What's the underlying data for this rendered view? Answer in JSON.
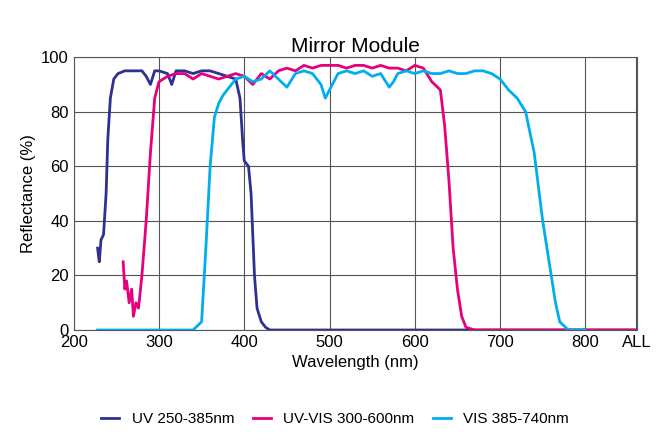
{
  "chart_data": {
    "type": "line",
    "title": "Mirror Module",
    "x_label": "Wavelength (nm)",
    "y_label": "Reflectance (%)",
    "xlim": [
      200,
      860
    ],
    "xticks": [
      200,
      300,
      400,
      500,
      600,
      700,
      800,
      {
        "value": 860,
        "label": "ALL"
      }
    ],
    "ylim": [
      0,
      100
    ],
    "yticks": [
      0,
      20,
      40,
      60,
      80,
      100
    ],
    "grid": true,
    "legend": "lower center",
    "series": [
      {
        "name": "UV 250-385nm",
        "color": "#2e3192",
        "x": [
          228,
          230,
          232,
          235,
          238,
          240,
          243,
          247,
          252,
          260,
          270,
          280,
          285,
          290,
          295,
          300,
          310,
          315,
          320,
          330,
          340,
          350,
          360,
          370,
          380,
          390,
          395,
          398,
          400,
          405,
          408,
          410,
          412,
          415,
          420,
          425,
          430,
          500,
          600,
          700,
          800,
          860
        ],
        "values": [
          30,
          25,
          33,
          35,
          50,
          70,
          85,
          92,
          94,
          95,
          95,
          95,
          93,
          90,
          95,
          95,
          94,
          90,
          95,
          95,
          94,
          95,
          95,
          94,
          93,
          92,
          85,
          70,
          62,
          60,
          50,
          35,
          20,
          8,
          3,
          1,
          0,
          0,
          0,
          0,
          0,
          0
        ]
      },
      {
        "name": "UV-VIS 300-600nm",
        "color": "#e6007e",
        "x": [
          258,
          260,
          262,
          265,
          268,
          270,
          273,
          276,
          280,
          285,
          290,
          295,
          300,
          310,
          320,
          330,
          340,
          350,
          360,
          370,
          380,
          390,
          400,
          410,
          420,
          430,
          440,
          450,
          460,
          470,
          480,
          490,
          500,
          510,
          520,
          530,
          540,
          550,
          560,
          570,
          580,
          590,
          600,
          610,
          620,
          630,
          635,
          640,
          645,
          650,
          655,
          660,
          670,
          700,
          800,
          860
        ],
        "values": [
          25,
          15,
          18,
          10,
          15,
          5,
          10,
          8,
          20,
          40,
          65,
          85,
          91,
          93,
          94,
          94,
          92,
          94,
          93,
          92,
          93,
          94,
          93,
          90,
          94,
          92,
          95,
          96,
          95,
          97,
          96,
          97,
          97,
          97,
          96,
          97,
          97,
          96,
          97,
          96,
          96,
          95,
          97,
          96,
          91,
          88,
          75,
          55,
          30,
          15,
          5,
          1,
          0,
          0,
          0,
          0
        ]
      },
      {
        "name": "VIS 385-740nm",
        "color": "#00aeef",
        "x": [
          228,
          340,
          350,
          355,
          360,
          365,
          370,
          375,
          380,
          390,
          400,
          410,
          420,
          430,
          440,
          450,
          460,
          470,
          480,
          490,
          495,
          500,
          510,
          520,
          530,
          540,
          550,
          560,
          570,
          575,
          580,
          590,
          600,
          610,
          620,
          630,
          640,
          650,
          660,
          670,
          680,
          690,
          700,
          710,
          720,
          730,
          740,
          750,
          760,
          765,
          770,
          780,
          800
        ],
        "values": [
          0,
          0,
          3,
          30,
          60,
          78,
          83,
          86,
          88,
          92,
          93,
          91,
          92,
          95,
          92,
          89,
          94,
          95,
          94,
          90,
          85,
          88,
          94,
          95,
          94,
          95,
          93,
          94,
          89,
          91,
          94,
          95,
          94,
          95,
          94,
          94,
          95,
          94,
          94,
          95,
          95,
          94,
          92,
          88,
          85,
          80,
          65,
          40,
          20,
          10,
          3,
          0,
          0
        ]
      }
    ]
  }
}
